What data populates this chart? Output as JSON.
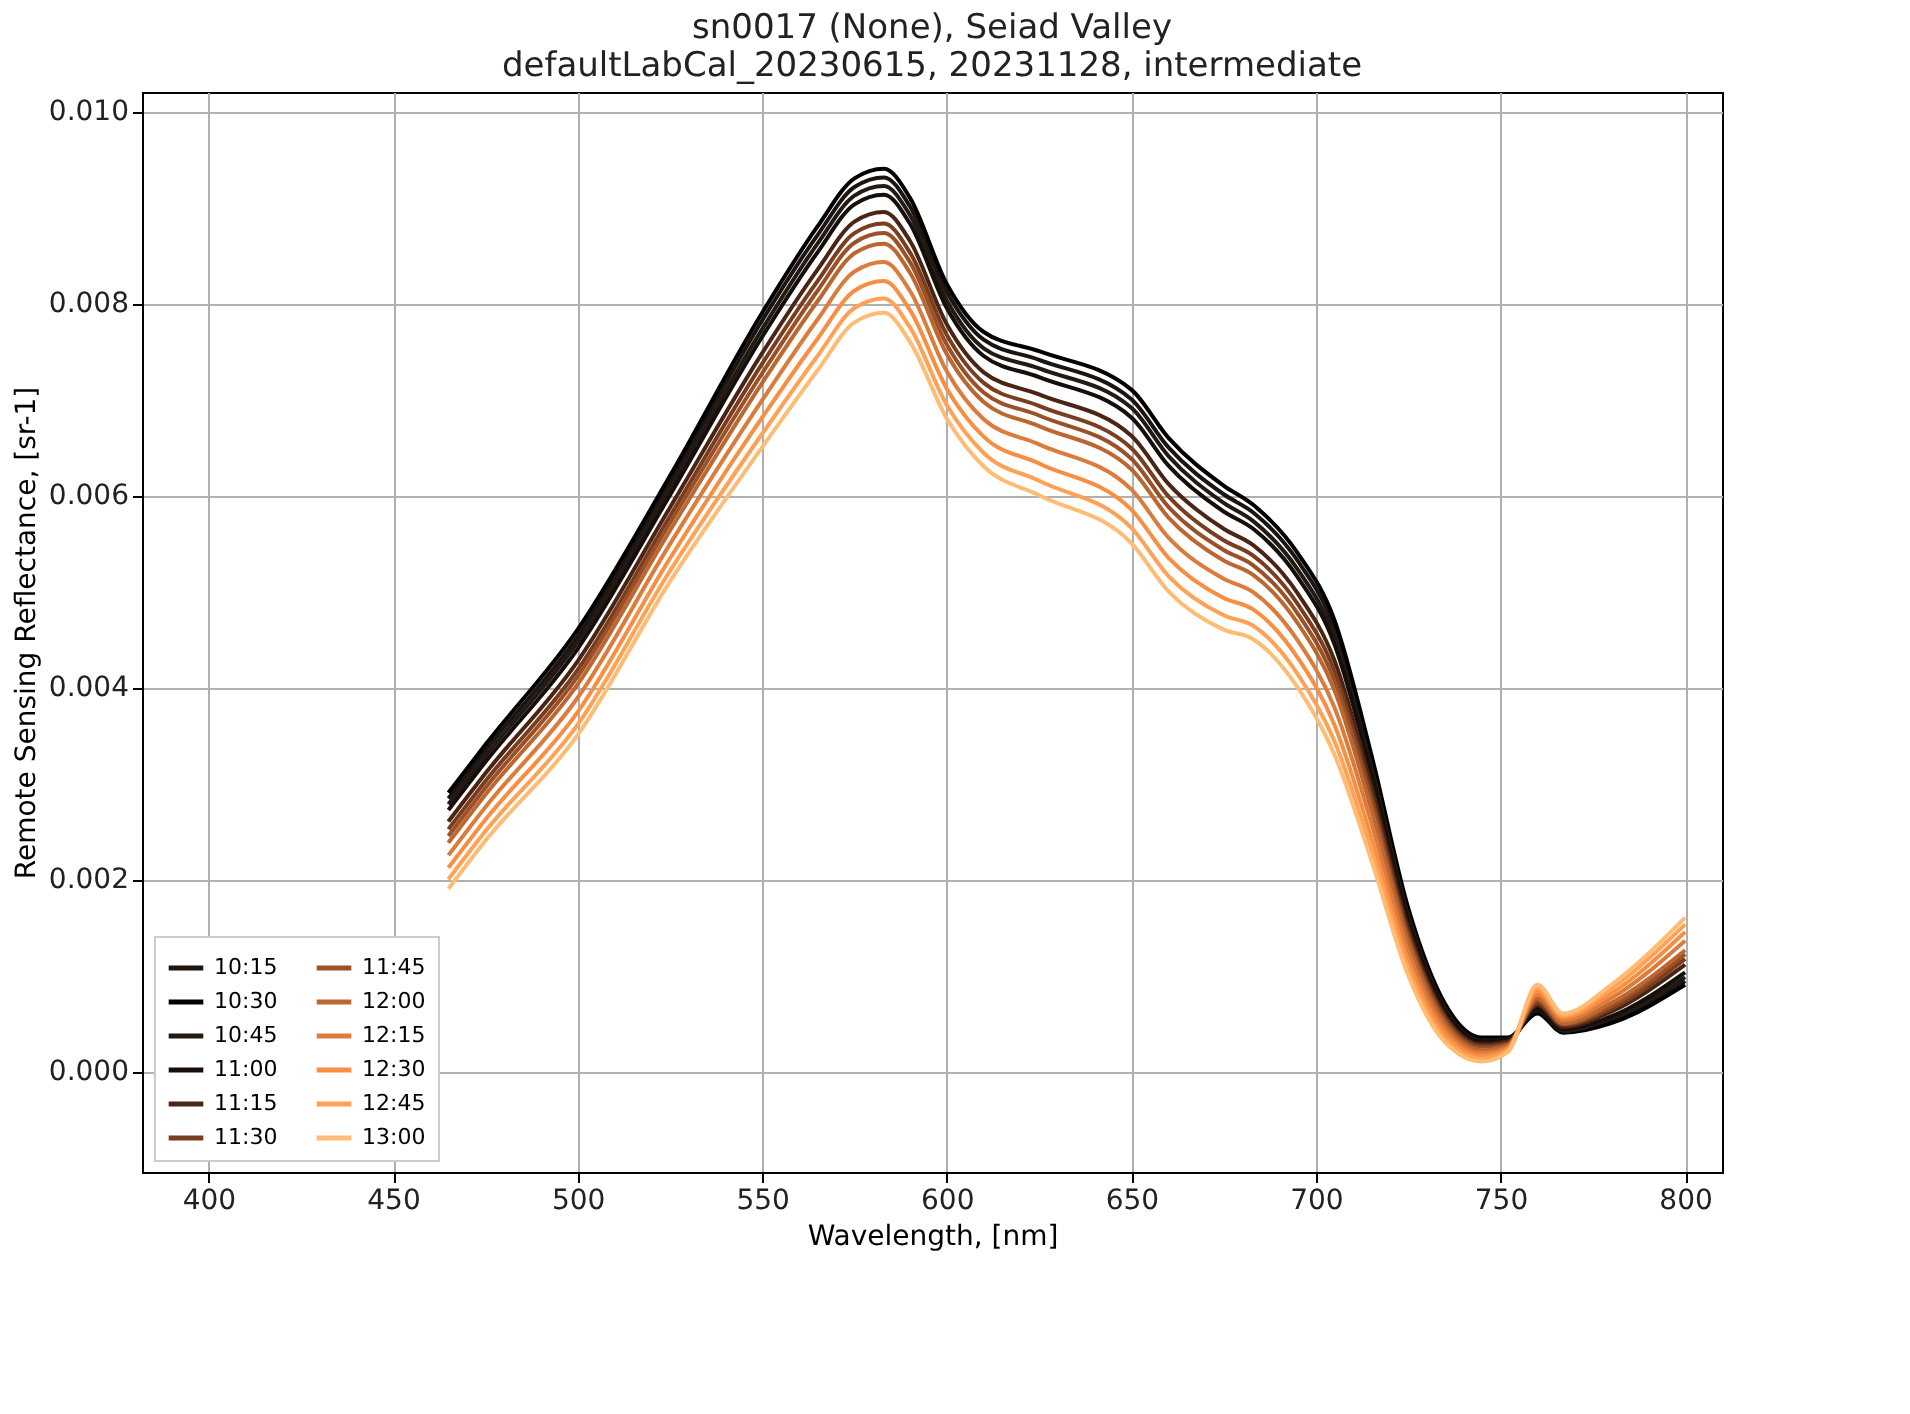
{
  "chart_data": {
    "type": "line",
    "title": "sn0017 (None), Seiad Valley\ndefaultLabCal_20230615, 20231128, intermediate",
    "xlabel": "Wavelength, [nm]",
    "ylabel": "Remote Sensing Reflectance, [sr-1]",
    "x": [
      465,
      475,
      500,
      525,
      550,
      565,
      575,
      583,
      590,
      600,
      610,
      625,
      650,
      660,
      675,
      683,
      695,
      705,
      715,
      725,
      735,
      745,
      752,
      760,
      767,
      780,
      800
    ],
    "series": [
      {
        "name": "10:15",
        "color": "#1c1410",
        "values": [
          0.00284,
          0.00334,
          0.00453,
          0.00613,
          0.00782,
          0.00871,
          0.00921,
          0.00931,
          0.00901,
          0.00812,
          0.00762,
          0.00741,
          0.007,
          0.0065,
          0.00601,
          0.00582,
          0.00532,
          0.00462,
          0.00323,
          0.00166,
          0.00068,
          0.00034,
          0.00034,
          0.00062,
          0.00041,
          0.00052,
          0.00094
        ]
      },
      {
        "name": "10:30",
        "color": "#000000",
        "values": [
          0.0029,
          0.0034,
          0.0046,
          0.0062,
          0.0079,
          0.0088,
          0.0093,
          0.0094,
          0.0091,
          0.0082,
          0.0077,
          0.0075,
          0.0071,
          0.0066,
          0.0061,
          0.0059,
          0.0054,
          0.0047,
          0.0033,
          0.0017,
          0.0007,
          0.00035,
          0.00035,
          0.0006,
          0.0004,
          0.0005,
          0.0009
        ]
      },
      {
        "name": "10:45",
        "color": "#241a14",
        "values": [
          0.00278,
          0.00328,
          0.00447,
          0.00607,
          0.00773,
          0.00862,
          0.00912,
          0.00922,
          0.00892,
          0.00803,
          0.00753,
          0.00732,
          0.00691,
          0.00641,
          0.00592,
          0.00573,
          0.00523,
          0.00453,
          0.00317,
          0.00162,
          0.00065,
          0.00032,
          0.00033,
          0.00064,
          0.00042,
          0.00055,
          0.00098
        ]
      },
      {
        "name": "11:00",
        "color": "#160e0a",
        "values": [
          0.00272,
          0.00322,
          0.0044,
          0.006,
          0.00765,
          0.00853,
          0.00903,
          0.00913,
          0.00883,
          0.00795,
          0.00745,
          0.00723,
          0.00681,
          0.00631,
          0.00583,
          0.00565,
          0.00515,
          0.00445,
          0.0031,
          0.00157,
          0.00063,
          0.00031,
          0.00032,
          0.00065,
          0.00044,
          0.00057,
          0.00103
        ]
      },
      {
        "name": "11:15",
        "color": "#4a2414",
        "values": [
          0.0026,
          0.0031,
          0.00427,
          0.00587,
          0.00748,
          0.00835,
          0.00885,
          0.00895,
          0.00865,
          0.00778,
          0.00728,
          0.00705,
          0.00662,
          0.00612,
          0.00565,
          0.00548,
          0.00498,
          0.00428,
          0.00297,
          0.00149,
          0.00058,
          0.00028,
          0.00031,
          0.00069,
          0.00046,
          0.00062,
          0.00111
        ]
      },
      {
        "name": "11:30",
        "color": "#7a3e1e",
        "values": [
          0.00252,
          0.00302,
          0.00418,
          0.00578,
          0.00737,
          0.00823,
          0.00873,
          0.00883,
          0.00853,
          0.00767,
          0.00717,
          0.00693,
          0.00649,
          0.00599,
          0.00553,
          0.00537,
          0.00487,
          0.00417,
          0.00288,
          0.00143,
          0.00055,
          0.00026,
          0.00029,
          0.00071,
          0.00048,
          0.00065,
          0.00117
        ]
      },
      {
        "name": "11:45",
        "color": "#9c5028",
        "values": [
          0.00245,
          0.00295,
          0.00411,
          0.00571,
          0.00727,
          0.00813,
          0.00863,
          0.00873,
          0.00843,
          0.00757,
          0.00707,
          0.00683,
          0.00638,
          0.00588,
          0.00543,
          0.00527,
          0.00477,
          0.00407,
          0.00281,
          0.00139,
          0.00052,
          0.00024,
          0.00028,
          0.00074,
          0.00049,
          0.00068,
          0.00122
        ]
      },
      {
        "name": "12:00",
        "color": "#bc6630",
        "values": [
          0.00238,
          0.00288,
          0.00403,
          0.00563,
          0.00717,
          0.00802,
          0.00852,
          0.00862,
          0.00832,
          0.00747,
          0.00697,
          0.00672,
          0.00627,
          0.00577,
          0.00532,
          0.00517,
          0.00467,
          0.00397,
          0.00273,
          0.00134,
          0.00049,
          0.00022,
          0.00027,
          0.00076,
          0.0005,
          0.00071,
          0.00126
        ]
      },
      {
        "name": "12:15",
        "color": "#dc7c3c",
        "values": [
          0.00225,
          0.00275,
          0.00389,
          0.00549,
          0.00699,
          0.00783,
          0.00833,
          0.00843,
          0.00813,
          0.00729,
          0.00679,
          0.00653,
          0.00606,
          0.00556,
          0.00513,
          0.00499,
          0.00449,
          0.00379,
          0.00259,
          0.00125,
          0.00044,
          0.00019,
          0.00025,
          0.0008,
          0.00053,
          0.00076,
          0.00136
        ]
      },
      {
        "name": "12:30",
        "color": "#f88e42",
        "values": [
          0.00212,
          0.00262,
          0.00374,
          0.00534,
          0.00681,
          0.00763,
          0.00813,
          0.00823,
          0.00793,
          0.00711,
          0.00661,
          0.00633,
          0.00585,
          0.00535,
          0.00493,
          0.00481,
          0.00431,
          0.00361,
          0.00244,
          0.00115,
          0.00039,
          0.00016,
          0.00023,
          0.00083,
          0.00056,
          0.00081,
          0.00145
        ]
      },
      {
        "name": "12:45",
        "color": "#ffa256",
        "values": [
          0.002,
          0.0025,
          0.00361,
          0.00521,
          0.00664,
          0.00745,
          0.00795,
          0.00805,
          0.00775,
          0.00694,
          0.00644,
          0.00615,
          0.00566,
          0.00516,
          0.00475,
          0.00464,
          0.00414,
          0.00344,
          0.00231,
          0.00107,
          0.00034,
          0.00013,
          0.00022,
          0.00087,
          0.00058,
          0.00086,
          0.00153
        ]
      },
      {
        "name": "13:00",
        "color": "#ffbc74",
        "values": [
          0.0019,
          0.0024,
          0.0035,
          0.0051,
          0.0065,
          0.0073,
          0.0078,
          0.0079,
          0.0076,
          0.0068,
          0.0063,
          0.006,
          0.0055,
          0.005,
          0.0046,
          0.0045,
          0.004,
          0.0033,
          0.0022,
          0.001,
          0.0003,
          0.0001,
          0.0002,
          0.0009,
          0.0006,
          0.0009,
          0.0016
        ]
      }
    ],
    "xlim": [
      382,
      810
    ],
    "xticks": [
      400,
      450,
      500,
      550,
      600,
      650,
      700,
      750,
      800
    ],
    "ylim": [
      -0.00105,
      0.0102
    ],
    "yticks": [
      {
        "value": 0,
        "label": "0.000"
      },
      0.002,
      0.004,
      0.006,
      0.008,
      {
        "value": 0.01,
        "label": "0.010"
      }
    ],
    "grid": true,
    "legend": "bottom left"
  }
}
